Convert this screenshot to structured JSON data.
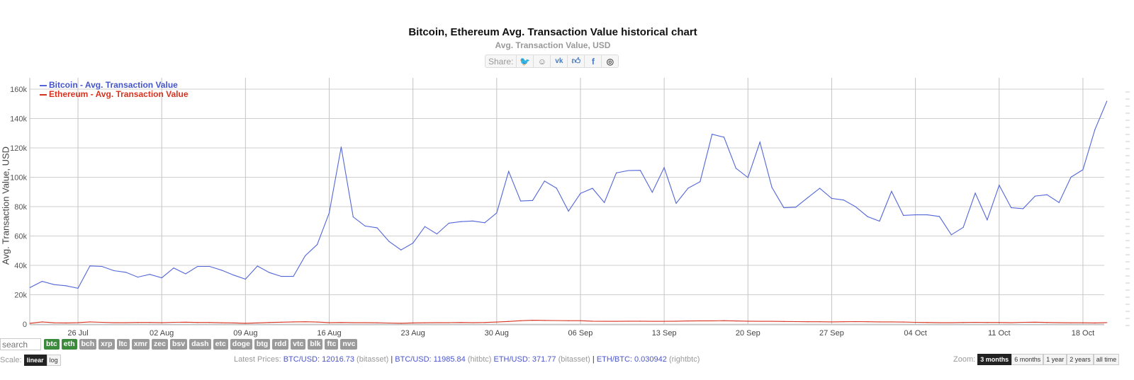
{
  "header": {
    "title": "Bitcoin, Ethereum Avg. Transaction Value historical chart",
    "subtitle": "Avg. Transaction Value, USD",
    "share_label": "Share:",
    "share_icons": [
      "twitter-icon",
      "reddit-icon",
      "vk-icon",
      "like-icon",
      "facebook-icon",
      "weibo-icon"
    ]
  },
  "chart_data": {
    "type": "line",
    "title": "Bitcoin, Ethereum Avg. Transaction Value historical chart",
    "subtitle": "Avg. Transaction Value, USD",
    "ylabel": "Avg. Transaction Value, USD",
    "ylim": [
      0,
      160000
    ],
    "yticks": [
      "0",
      "20k",
      "40k",
      "60k",
      "80k",
      "100k",
      "120k",
      "140k",
      "160k"
    ],
    "xticks": [
      "26 Jul",
      "02 Aug",
      "09 Aug",
      "16 Aug",
      "23 Aug",
      "30 Aug",
      "06 Sep",
      "13 Sep",
      "20 Sep",
      "27 Sep",
      "04 Oct",
      "11 Oct",
      "18 Oct"
    ],
    "x_range": [
      "22 Jul",
      "20 Oct"
    ],
    "grid": true,
    "legend": "top-left",
    "series": [
      {
        "name": "Bitcoin - Avg. Transaction Value",
        "color": "#5266d8",
        "values": [
          24900,
          29100,
          26900,
          26100,
          24400,
          39600,
          39300,
          36400,
          35300,
          32000,
          33900,
          31500,
          38200,
          34200,
          39300,
          39300,
          36700,
          33400,
          30600,
          39500,
          35100,
          32500,
          32500,
          46600,
          54200,
          75700,
          120600,
          73000,
          66800,
          65600,
          56300,
          50500,
          55200,
          66400,
          61400,
          68700,
          69800,
          70200,
          69000,
          75700,
          104000,
          83800,
          84200,
          97400,
          92600,
          76900,
          89000,
          92500,
          82800,
          103000,
          104600,
          104700,
          89800,
          106600,
          82200,
          92600,
          97000,
          129300,
          127300,
          106100,
          99800,
          123900,
          93100,
          79300,
          79600,
          86100,
          92500,
          85600,
          84500,
          79900,
          73200,
          70100,
          90400,
          74000,
          74400,
          74400,
          73300,
          60800,
          65900,
          89200,
          71000,
          94600,
          79300,
          78600,
          87200,
          88100,
          82800,
          100100,
          105100,
          132400,
          151800
        ]
      },
      {
        "name": "Ethereum - Avg. Transaction Value",
        "color": "#d8321e",
        "values": [
          600,
          1500,
          900,
          800,
          1000,
          1500,
          1200,
          1000,
          1000,
          1100,
          1100,
          1000,
          1200,
          1300,
          1100,
          1100,
          900,
          800,
          600,
          800,
          1100,
          1300,
          1500,
          1600,
          1400,
          1000,
          1100,
          1000,
          1000,
          900,
          700,
          600,
          800,
          900,
          1000,
          1000,
          1100,
          1000,
          1100,
          1400,
          1800,
          2300,
          2600,
          2500,
          2400,
          2300,
          2300,
          2000,
          1900,
          1900,
          2000,
          2000,
          1900,
          1900,
          2000,
          2100,
          2200,
          2200,
          2300,
          2100,
          2000,
          1900,
          1900,
          1800,
          1700,
          1600,
          1600,
          1500,
          1600,
          1700,
          1600,
          1500,
          1500,
          1400,
          1200,
          1100,
          1000,
          1000,
          1100,
          1200,
          1100,
          1100,
          1000,
          1200,
          1300,
          1100,
          1000,
          900,
          900,
          800,
          1000
        ]
      }
    ]
  },
  "controls": {
    "search_placeholder": "search",
    "coins": [
      {
        "label": "btc",
        "active": true
      },
      {
        "label": "eth",
        "active": true
      },
      {
        "label": "bch",
        "active": false
      },
      {
        "label": "xrp",
        "active": false
      },
      {
        "label": "ltc",
        "active": false
      },
      {
        "label": "xmr",
        "active": false
      },
      {
        "label": "zec",
        "active": false
      },
      {
        "label": "bsv",
        "active": false
      },
      {
        "label": "dash",
        "active": false
      },
      {
        "label": "etc",
        "active": false
      },
      {
        "label": "doge",
        "active": false
      },
      {
        "label": "btg",
        "active": false
      },
      {
        "label": "rdd",
        "active": false
      },
      {
        "label": "vtc",
        "active": false
      },
      {
        "label": "blk",
        "active": false
      },
      {
        "label": "ftc",
        "active": false
      },
      {
        "label": "nvc",
        "active": false
      }
    ],
    "scale_label": "Scale:",
    "scale_options": [
      "linear",
      "log"
    ],
    "scale_selected": "linear",
    "zoom_label": "Zoom:",
    "zoom_options": [
      "3 months",
      "6 months",
      "1 year",
      "2 years",
      "all time"
    ],
    "zoom_selected": "3 months"
  },
  "prices": {
    "label": "Latest Prices:",
    "items": [
      {
        "pair": "BTC/USD: 12016.73",
        "source": "(bitasset)",
        "sep": "|"
      },
      {
        "pair": "BTC/USD: 11985.84",
        "source": "(hitbtc)",
        "sep": ""
      },
      {
        "pair": "ETH/USD: 371.77",
        "source": "(bitasset)",
        "sep": "|"
      },
      {
        "pair": "ETH/BTC: 0.030942",
        "source": "(rightbtc)",
        "sep": ""
      }
    ]
  }
}
